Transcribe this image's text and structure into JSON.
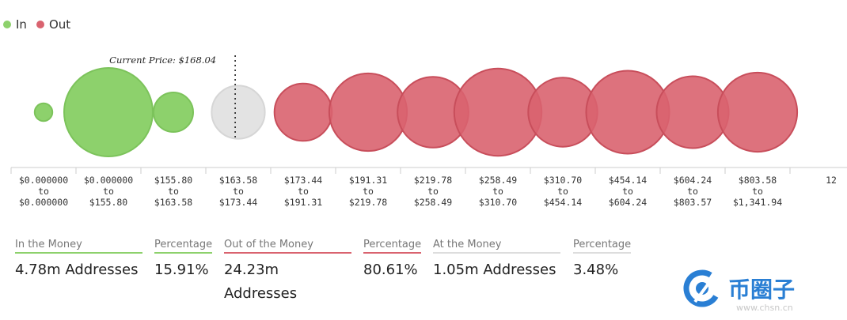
{
  "legend": {
    "in_label": "In",
    "out_label": "Out",
    "in_color": "#8dd16c",
    "out_color": "#d9636f"
  },
  "chart_data": {
    "type": "bubble",
    "current_price_label": "Current Price: $168.04",
    "current_price": 168.04,
    "categories": [
      [
        "$0.000000",
        "to",
        "$0.000000"
      ],
      [
        "$0.000000",
        "to",
        "$155.80"
      ],
      [
        "$155.80",
        "to",
        "$163.58"
      ],
      [
        "$163.58",
        "to",
        "$173.44"
      ],
      [
        "$173.44",
        "to",
        "$191.31"
      ],
      [
        "$191.31",
        "to",
        "$219.78"
      ],
      [
        "$219.78",
        "to",
        "$258.49"
      ],
      [
        "$258.49",
        "to",
        "$310.70"
      ],
      [
        "$310.70",
        "to",
        "$454.14"
      ],
      [
        "$454.14",
        "to",
        "$604.24"
      ],
      [
        "$604.24",
        "to",
        "$803.57"
      ],
      [
        "$803.58",
        "to",
        "$1,341.94"
      ],
      [
        "12"
      ]
    ],
    "series": [
      {
        "name": "In",
        "bubbles": [
          {
            "index": 0,
            "size": 0.04
          },
          {
            "index": 1,
            "size": 1.0
          },
          {
            "index": 2,
            "size": 0.2
          }
        ]
      },
      {
        "name": "At",
        "bubbles": [
          {
            "index": 3,
            "size": 0.36
          }
        ]
      },
      {
        "name": "Out",
        "bubbles": [
          {
            "index": 4,
            "size": 0.42
          },
          {
            "index": 5,
            "size": 0.77
          },
          {
            "index": 6,
            "size": 0.64
          },
          {
            "index": 7,
            "size": 0.97
          },
          {
            "index": 8,
            "size": 0.61
          },
          {
            "index": 9,
            "size": 0.88
          },
          {
            "index": 10,
            "size": 0.66
          },
          {
            "index": 11,
            "size": 0.8
          }
        ]
      }
    ],
    "colors": {
      "in": "#8dd16c",
      "at": "#e3e3e3",
      "out": "#d9636f"
    }
  },
  "stats": [
    {
      "title": "In the Money",
      "value": "4.78m Addresses",
      "line_color": "#8dd16c"
    },
    {
      "title": "Percentage",
      "value": "15.91%",
      "line_color": "#8dd16c"
    },
    {
      "title": "Out of the Money",
      "value": "24.23m Addresses",
      "line_color": "#d9636f"
    },
    {
      "title": "Percentage",
      "value": "80.61%",
      "line_color": "#d9636f"
    },
    {
      "title": "At the Money",
      "value": "1.05m Addresses",
      "line_color": "#dddddd"
    },
    {
      "title": "Percentage",
      "value": "3.48%",
      "line_color": "#dddddd"
    }
  ],
  "logo": {
    "text": "币圈子"
  },
  "watermark": {
    "text": "www.chsn.cn"
  }
}
